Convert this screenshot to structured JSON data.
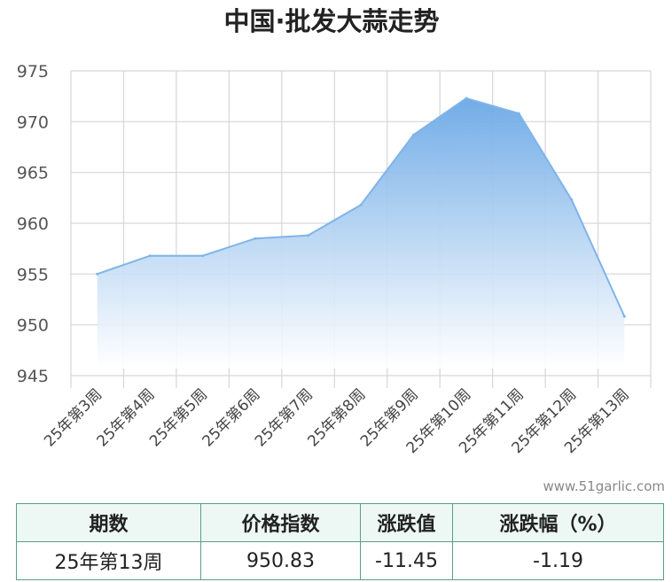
{
  "chart_data": {
    "type": "area",
    "title": "中国·批发大蒜走势",
    "categories": [
      "25年第3周",
      "25年第4周",
      "25年第5周",
      "25年第6周",
      "25年第7周",
      "25年第8周",
      "25年第9周",
      "25年第10周",
      "25年第11周",
      "25年第12周",
      "25年第13周"
    ],
    "values": [
      955.0,
      956.8,
      956.8,
      958.5,
      958.8,
      961.8,
      968.7,
      972.3,
      970.8,
      962.3,
      950.83
    ],
    "ylim": [
      945,
      975
    ],
    "yticks": [
      945,
      950,
      955,
      960,
      965,
      970,
      975
    ],
    "grid": true,
    "color": "#7fb4e8"
  },
  "watermark": "www.51garlic.com",
  "summary_table": {
    "headers": [
      "期数",
      "价格指数",
      "涨跌值",
      "涨跌幅（%）"
    ],
    "row": [
      "25年第13周",
      "950.83",
      "-11.45",
      "-1.19"
    ]
  }
}
